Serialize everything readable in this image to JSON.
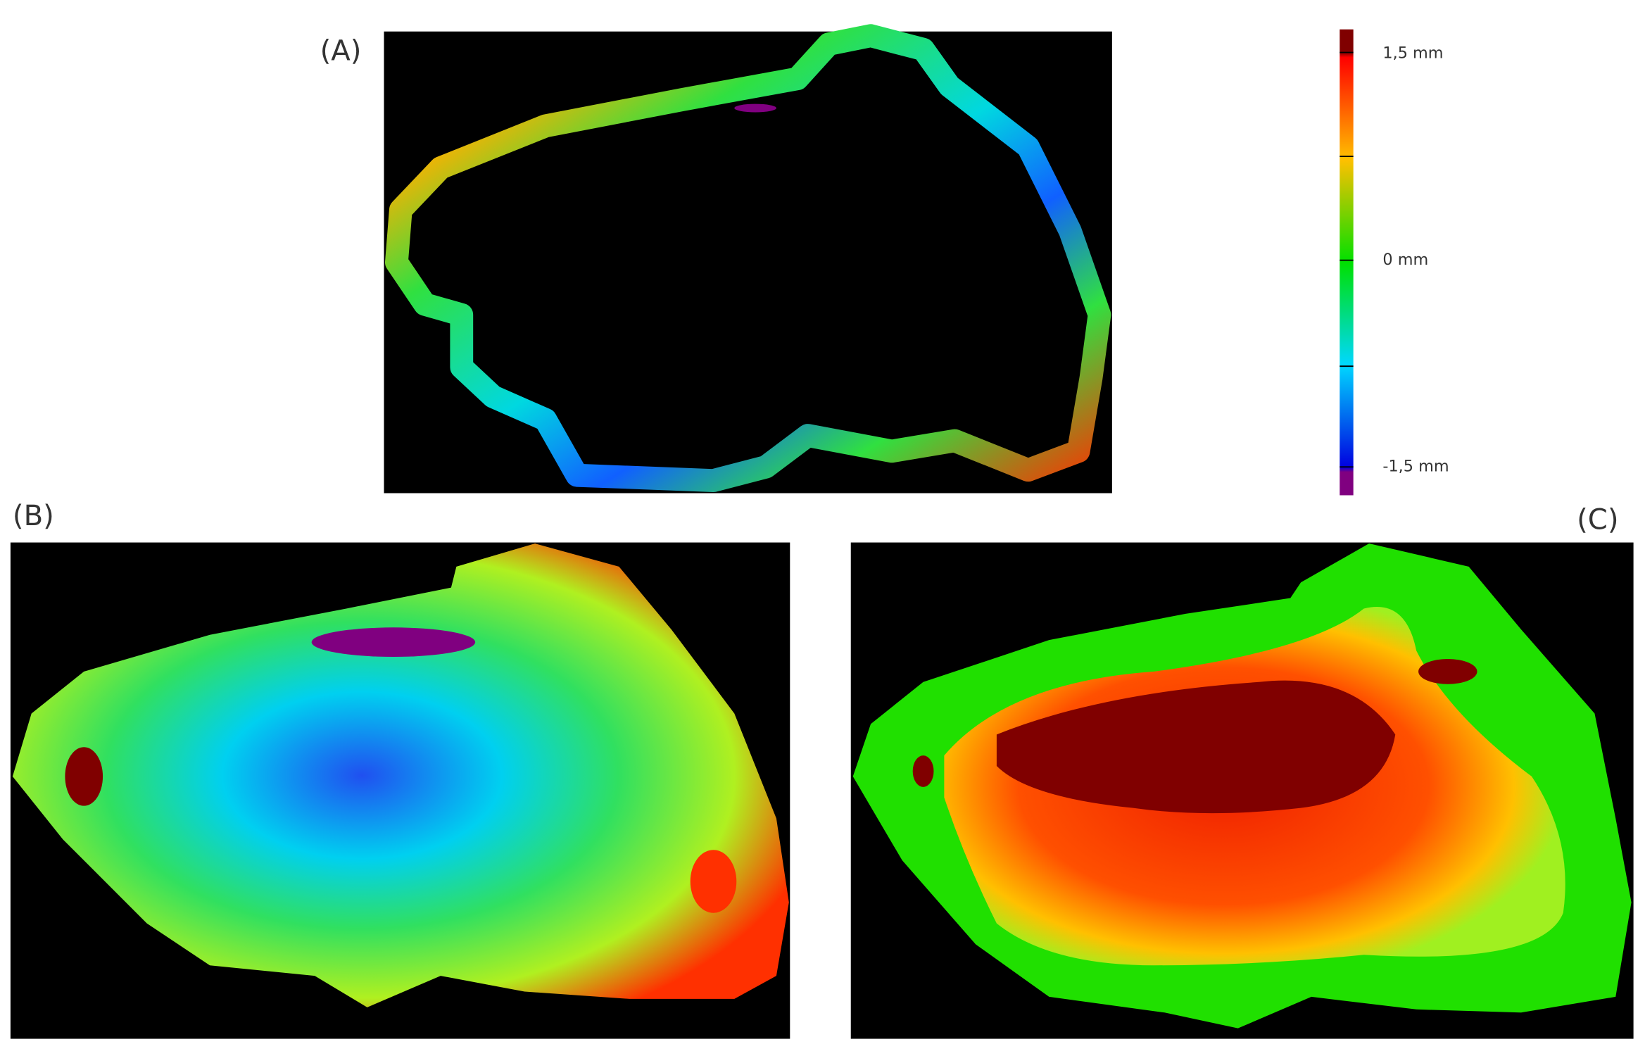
{
  "panels": {
    "a": {
      "label": "(A)"
    },
    "b": {
      "label": "(B)"
    },
    "c": {
      "label": "(C)"
    }
  },
  "colorbar": {
    "labels": [
      "1,5 mm",
      "0 mm",
      "-1,5 mm"
    ]
  }
}
